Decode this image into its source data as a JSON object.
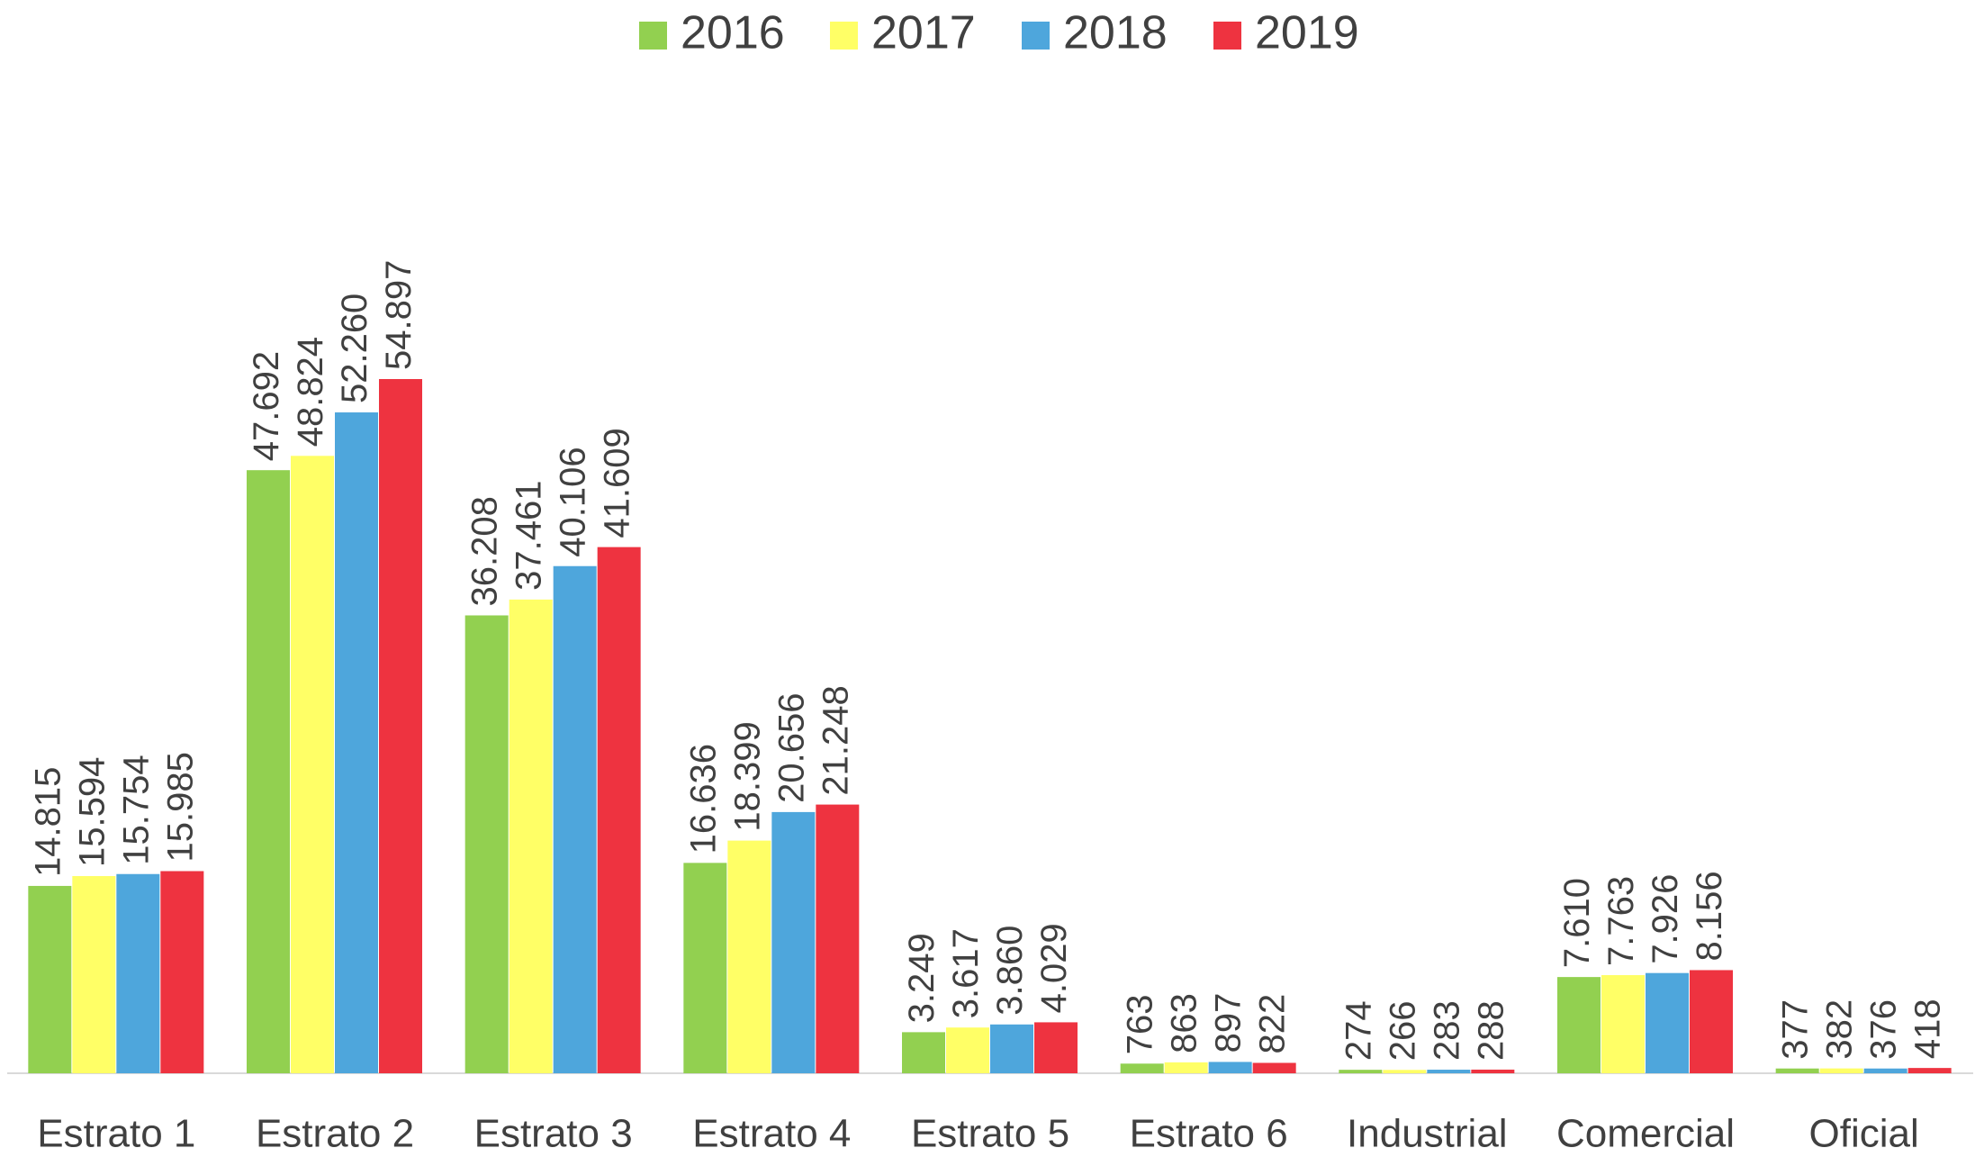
{
  "chart_data": {
    "type": "bar",
    "categories": [
      "Estrato 1",
      "Estrato 2",
      "Estrato 3",
      "Estrato 4",
      "Estrato 5",
      "Estrato 6",
      "Industrial",
      "Comercial",
      "Oficial"
    ],
    "legend": "top",
    "series": [
      {
        "name": "2016",
        "color": "#92d050",
        "values": [
          14815,
          47692,
          36208,
          16636,
          3249,
          763,
          274,
          7610,
          377
        ],
        "value_labels": [
          "14.815",
          "47.692",
          "36.208",
          "16.636",
          "3.249",
          "763",
          "274",
          "7.610",
          "377"
        ]
      },
      {
        "name": "2017",
        "color": "#ffff66",
        "values": [
          15594,
          48824,
          37461,
          18399,
          3617,
          863,
          266,
          7763,
          382
        ],
        "value_labels": [
          "15.594",
          "48.824",
          "37.461",
          "18.399",
          "3.617",
          "863",
          "266",
          "7.763",
          "382"
        ]
      },
      {
        "name": "2018",
        "color": "#4ea6dc",
        "values": [
          15754,
          52260,
          40106,
          20656,
          3860,
          897,
          283,
          7926,
          376
        ],
        "value_labels": [
          "15.754",
          "52.260",
          "40.106",
          "20.656",
          "3.860",
          "897",
          "283",
          "7.926",
          "376"
        ]
      },
      {
        "name": "2019",
        "color": "#ee3340",
        "values": [
          15985,
          54897,
          41609,
          21248,
          4029,
          822,
          288,
          8156,
          418
        ],
        "value_labels": [
          "15.985",
          "54.897",
          "41.609",
          "21.248",
          "4.029",
          "822",
          "288",
          "8.156",
          "418"
        ]
      }
    ]
  }
}
